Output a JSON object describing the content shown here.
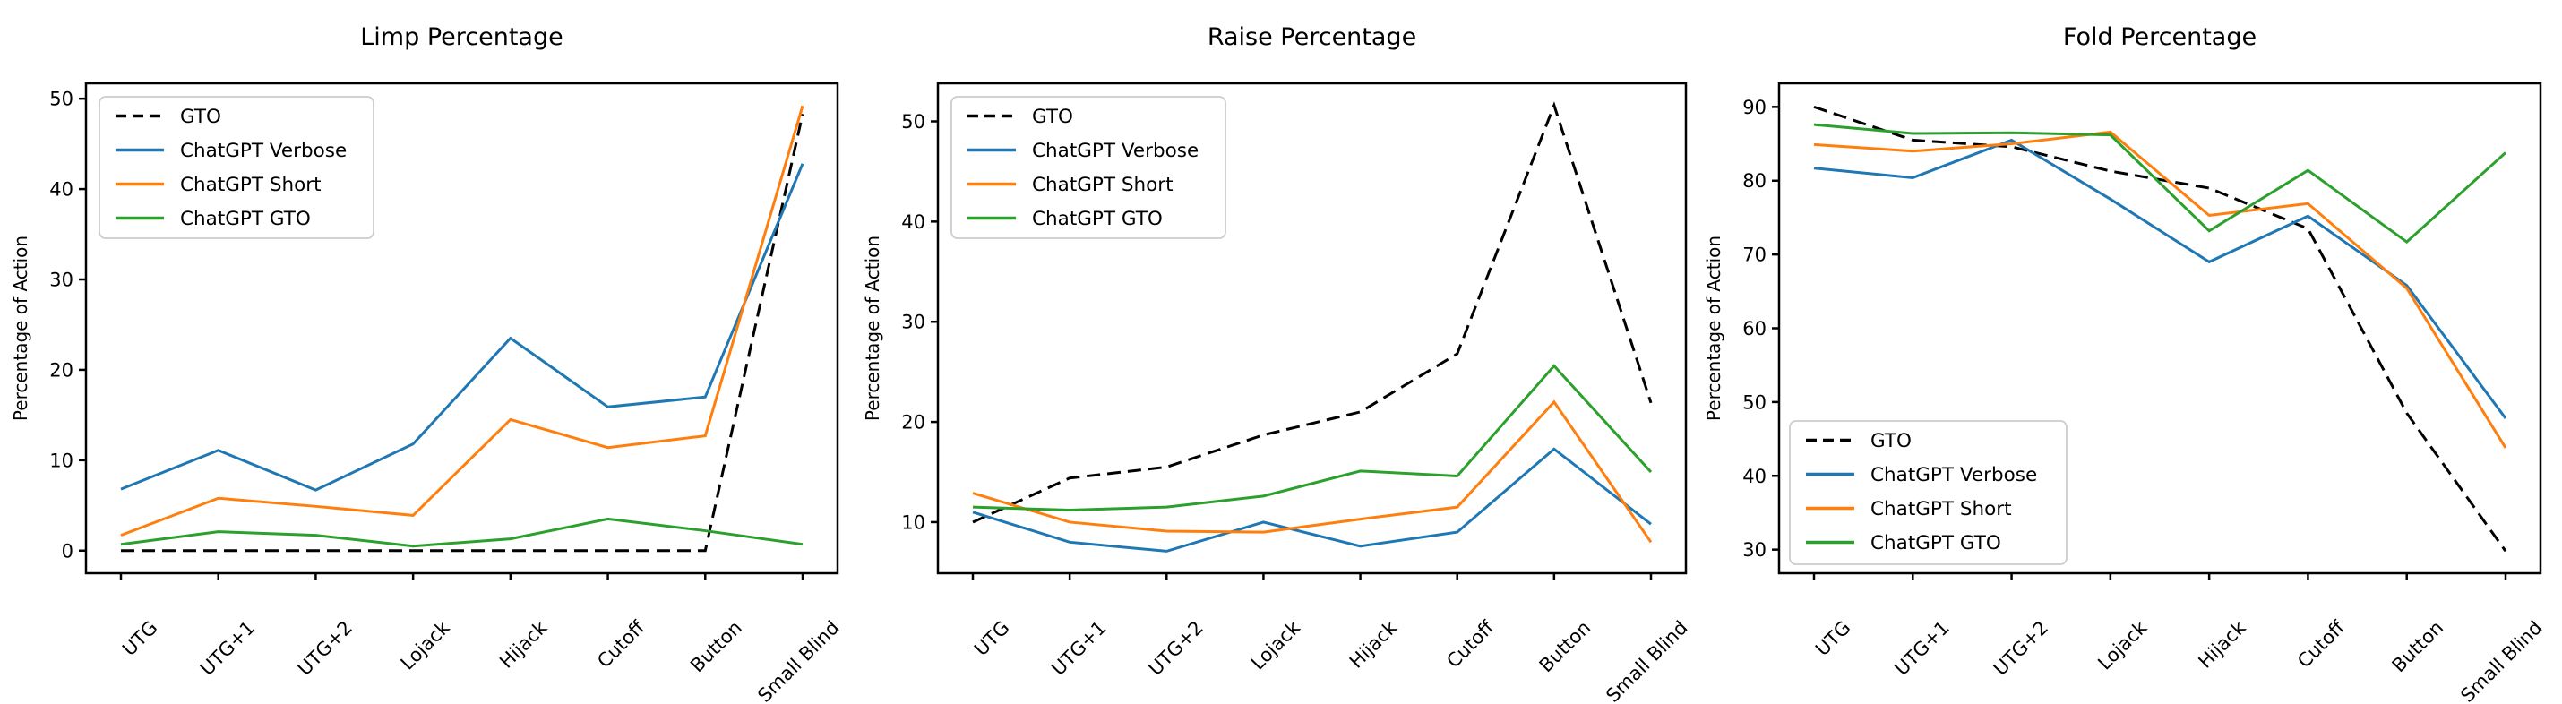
{
  "figure": {
    "background": "#ffffff",
    "y_axis_label": "Percentage of Action"
  },
  "colors": {
    "gto": "#000000",
    "chatgpt_verbose": "#1f77b4",
    "chatgpt_short": "#ff7f0e",
    "chatgpt_gto": "#2ca02c",
    "legend_border": "#cccccc",
    "spine": "#000000"
  },
  "legend": {
    "entries": [
      "GTO",
      "ChatGPT Verbose",
      "ChatGPT Short",
      "ChatGPT GTO"
    ]
  },
  "chart_data": [
    {
      "type": "line",
      "title": "Limp Percentage",
      "xlabel": "",
      "ylabel": "Percentage of Action",
      "categories": [
        "UTG",
        "UTG+1",
        "UTG+2",
        "Lojack",
        "Hijack",
        "Cutoff",
        "Button",
        "Small Blind"
      ],
      "yticks": [
        0,
        10,
        20,
        30,
        40,
        50
      ],
      "ylim": [
        -2.5,
        51.7
      ],
      "grid": false,
      "legend_position": "upper-left",
      "series": [
        {
          "name": "GTO",
          "color": "#000000",
          "dashed": true,
          "values": [
            0,
            0,
            0,
            0,
            0,
            0,
            0,
            48.3
          ]
        },
        {
          "name": "ChatGPT Verbose",
          "color": "#1f77b4",
          "dashed": false,
          "values": [
            6.8,
            11.1,
            6.7,
            11.8,
            23.5,
            15.9,
            17.0,
            42.8
          ]
        },
        {
          "name": "ChatGPT Short",
          "color": "#ff7f0e",
          "dashed": false,
          "values": [
            1.7,
            5.8,
            4.9,
            3.9,
            14.5,
            11.4,
            12.7,
            49.2
          ]
        },
        {
          "name": "ChatGPT GTO",
          "color": "#2ca02c",
          "dashed": false,
          "values": [
            0.7,
            2.1,
            1.7,
            0.5,
            1.3,
            3.5,
            2.2,
            0.7
          ]
        }
      ]
    },
    {
      "type": "line",
      "title": "Raise Percentage",
      "xlabel": "",
      "ylabel": "Percentage of Action",
      "categories": [
        "UTG",
        "UTG+1",
        "UTG+2",
        "Lojack",
        "Hijack",
        "Cutoff",
        "Button",
        "Small Blind"
      ],
      "yticks": [
        10,
        20,
        30,
        40,
        50
      ],
      "ylim": [
        4.9,
        53.8
      ],
      "grid": false,
      "legend_position": "upper-left",
      "series": [
        {
          "name": "GTO",
          "color": "#000000",
          "dashed": true,
          "values": [
            10.0,
            14.4,
            15.5,
            18.7,
            21.0,
            26.8,
            51.6,
            21.9
          ]
        },
        {
          "name": "ChatGPT Verbose",
          "color": "#1f77b4",
          "dashed": false,
          "values": [
            11.0,
            8.0,
            7.1,
            10.0,
            7.6,
            9.0,
            17.3,
            9.8
          ]
        },
        {
          "name": "ChatGPT Short",
          "color": "#ff7f0e",
          "dashed": false,
          "values": [
            12.9,
            10.0,
            9.1,
            9.0,
            10.3,
            11.5,
            22.0,
            8.0
          ]
        },
        {
          "name": "ChatGPT GTO",
          "color": "#2ca02c",
          "dashed": false,
          "values": [
            11.5,
            11.2,
            11.5,
            12.6,
            15.1,
            14.6,
            25.6,
            15.0
          ]
        }
      ]
    },
    {
      "type": "line",
      "title": "Fold Percentage",
      "xlabel": "",
      "ylabel": "Percentage of Action",
      "categories": [
        "UTG",
        "UTG+1",
        "UTG+2",
        "Lojack",
        "Hijack",
        "Cutoff",
        "Button",
        "Small Blind"
      ],
      "yticks": [
        30,
        40,
        50,
        60,
        70,
        80,
        90
      ],
      "ylim": [
        26.8,
        93.2
      ],
      "grid": false,
      "legend_position": "center-left-low",
      "series": [
        {
          "name": "GTO",
          "color": "#000000",
          "dashed": true,
          "values": [
            90.0,
            85.5,
            84.6,
            81.3,
            79.0,
            73.5,
            48.5,
            29.8
          ]
        },
        {
          "name": "ChatGPT Verbose",
          "color": "#1f77b4",
          "dashed": false,
          "values": [
            81.7,
            80.4,
            85.5,
            77.5,
            69.0,
            75.2,
            65.8,
            47.8
          ]
        },
        {
          "name": "ChatGPT Short",
          "color": "#ff7f0e",
          "dashed": false,
          "values": [
            84.9,
            84.0,
            85.0,
            86.6,
            75.3,
            76.9,
            65.4,
            43.8
          ]
        },
        {
          "name": "ChatGPT GTO",
          "color": "#2ca02c",
          "dashed": false,
          "values": [
            87.6,
            86.4,
            86.5,
            86.2,
            73.2,
            81.4,
            71.7,
            83.8
          ]
        }
      ]
    }
  ]
}
